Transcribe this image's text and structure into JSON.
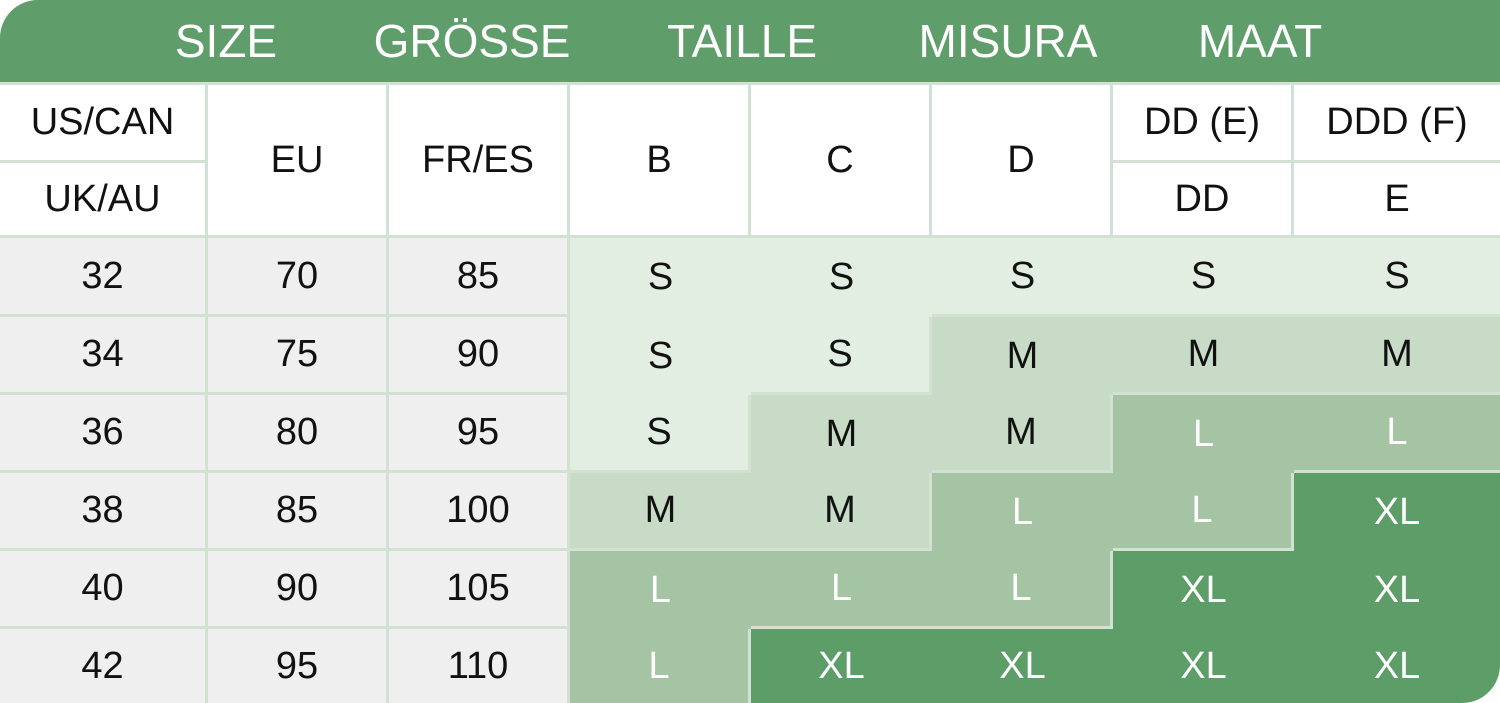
{
  "titles": [
    "SIZE",
    "GRÖSSE",
    "TAILLE",
    "MISURA",
    "MAAT"
  ],
  "header": {
    "us_can": "US/CAN",
    "uk_au": "UK/AU",
    "eu": "EU",
    "fr_es": "FR/ES",
    "cups_us": [
      "B",
      "C",
      "D",
      "DD (E)",
      "DDD (F)"
    ],
    "cups_uk": [
      "",
      "",
      "",
      "DD",
      "E"
    ]
  },
  "rows": [
    {
      "us": "32",
      "eu": "70",
      "fr": "85",
      "sizes": [
        "S",
        "S",
        "S",
        "S",
        "S"
      ]
    },
    {
      "us": "34",
      "eu": "75",
      "fr": "90",
      "sizes": [
        "S",
        "S",
        "M",
        "M",
        "M"
      ]
    },
    {
      "us": "36",
      "eu": "80",
      "fr": "95",
      "sizes": [
        "S",
        "M",
        "M",
        "L",
        "L"
      ]
    },
    {
      "us": "38",
      "eu": "85",
      "fr": "100",
      "sizes": [
        "M",
        "M",
        "L",
        "L",
        "XL"
      ]
    },
    {
      "us": "40",
      "eu": "90",
      "fr": "105",
      "sizes": [
        "L",
        "L",
        "L",
        "XL",
        "XL"
      ]
    },
    {
      "us": "42",
      "eu": "95",
      "fr": "110",
      "sizes": [
        "L",
        "XL",
        "XL",
        "XL",
        "XL"
      ]
    }
  ],
  "colors": {
    "header_green": "#5f9e6b",
    "S": "#e3eee2",
    "M": "#c8dbc7",
    "L": "#a4c4a3",
    "XL": "#5c9d68"
  }
}
